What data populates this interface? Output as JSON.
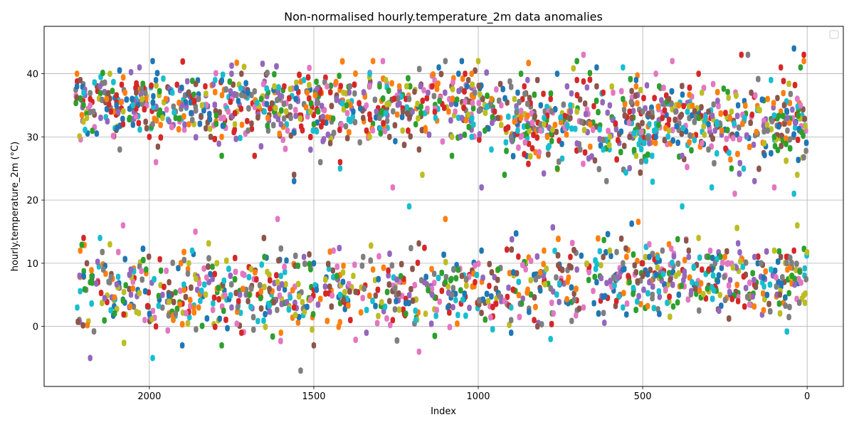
{
  "chart_data": {
    "type": "scatter",
    "title": "Non-normalised hourly.temperature_2m data anomalies",
    "xlabel": "Index",
    "ylabel": "hourly.temperature_2m (°C)",
    "x_inverted": true,
    "xlim": [
      2320,
      -110
    ],
    "ylim": [
      -9.5,
      47.5
    ],
    "x_ticks": [
      2000,
      1500,
      1000,
      500,
      0
    ],
    "x_tick_labels": [
      "2000",
      "1500",
      "1000",
      "500",
      "0"
    ],
    "y_ticks": [
      0,
      10,
      20,
      30,
      40
    ],
    "y_tick_labels": [
      "0",
      "10",
      "20",
      "30",
      "40"
    ],
    "grid": true,
    "legend_placement": "top-right",
    "legend_entries": [],
    "x_extent": [
      0,
      2225
    ],
    "clusters": [
      {
        "cluster": "high",
        "y_range_center": [
          30,
          40
        ],
        "y_extent": [
          19,
          45
        ]
      },
      {
        "cluster": "low",
        "y_range_center": [
          -2,
          13
        ],
        "y_extent": [
          -7,
          17
        ]
      }
    ],
    "palette": [
      "#1f77b4",
      "#ff7f0e",
      "#2ca02c",
      "#d62728",
      "#9467bd",
      "#8c564b",
      "#e377c2",
      "#7f7f7f",
      "#bcbd22",
      "#17becf"
    ],
    "series": [
      {
        "color": "#1f77b4",
        "x": [
          2220,
          2100,
          1990,
          1980,
          1700,
          1555,
          1560,
          1380,
          1120,
          1060,
          1050,
          880,
          810,
          760,
          640,
          520,
          460,
          300,
          210,
          40,
          2200,
          2000,
          1900,
          1500,
          1250,
          990,
          900,
          640,
          560,
          480,
          150
        ],
        "y": [
          38,
          35,
          42,
          39,
          37,
          36,
          23,
          34,
          41,
          40,
          42,
          37,
          35,
          40,
          41,
          39,
          30,
          32,
          35,
          44,
          8,
          2,
          -3,
          10,
          4,
          12,
          -1,
          7,
          9,
          11,
          10
        ]
      },
      {
        "color": "#ff7f0e",
        "x": [
          2220,
          2130,
          1950,
          1880,
          1780,
          1640,
          1520,
          1400,
          1320,
          1240,
          1160,
          1090,
          1020,
          960,
          870,
          790,
          660,
          520,
          390,
          260,
          120,
          10,
          2210,
          2050,
          1850,
          1600,
          1320,
          1100,
          800,
          420,
          250,
          60
        ],
        "y": [
          40,
          36,
          36,
          32,
          30,
          33,
          37,
          35,
          42,
          38,
          31,
          34,
          40,
          36,
          33,
          30,
          32,
          38,
          35,
          31,
          36,
          42,
          12,
          6,
          3,
          -1,
          9,
          17,
          12,
          13,
          11,
          9
        ]
      },
      {
        "color": "#2ca02c",
        "x": [
          2200,
          2060,
          1920,
          1780,
          1660,
          1500,
          1400,
          1300,
          1190,
          1080,
          980,
          920,
          870,
          760,
          700,
          560,
          450,
          330,
          230,
          100,
          20,
          2180,
          2010,
          1780,
          1650,
          1430,
          1220,
          1100,
          940,
          540,
          300
        ],
        "y": [
          35,
          33,
          33,
          27,
          36,
          32,
          35,
          38,
          32,
          27,
          31,
          24,
          40,
          25,
          42,
          36,
          38,
          33,
          25,
          30,
          41,
          7,
          9,
          -3,
          11,
          8,
          2,
          7,
          9,
          7,
          11
        ]
      },
      {
        "color": "#d62728",
        "x": [
          2180,
          2080,
          2000,
          1830,
          1680,
          1590,
          1480,
          1420,
          1340,
          1220,
          1140,
          1040,
          950,
          860,
          780,
          700,
          620,
          540,
          440,
          330,
          200,
          80,
          10,
          2200,
          1980,
          1720,
          1560,
          1260,
          1010,
          830,
          720,
          500,
          320,
          210,
          40
        ],
        "y": [
          36,
          32,
          30,
          38,
          27,
          38,
          37,
          26,
          31,
          36,
          38,
          40,
          34,
          38,
          36,
          39,
          37,
          34,
          33,
          40,
          43,
          41,
          43,
          14,
          0,
          -1,
          3,
          1,
          7,
          1,
          11,
          10,
          9,
          4,
          12
        ]
      },
      {
        "color": "#9467bd",
        "x": [
          2150,
          2030,
          1900,
          1750,
          1600,
          1430,
          1310,
          1200,
          1050,
          990,
          850,
          730,
          600,
          480,
          380,
          280,
          160,
          60,
          2180,
          1960,
          1750,
          1530,
          1340,
          1140,
          930,
          700,
          480,
          360,
          160
        ],
        "y": [
          38,
          41,
          35,
          40,
          32,
          36,
          34,
          34,
          33,
          22,
          39,
          38,
          35,
          29,
          27,
          31,
          23,
          33,
          -5,
          5,
          3,
          11,
          -1,
          5,
          4,
          9,
          7,
          11,
          11
        ]
      },
      {
        "color": "#8c564b",
        "x": [
          2210,
          2040,
          1880,
          1720,
          1560,
          1450,
          1350,
          1270,
          1180,
          1030,
          940,
          820,
          720,
          640,
          540,
          420,
          300,
          170,
          70,
          2190,
          1940,
          1700,
          1500,
          1270,
          1050,
          820,
          620,
          500,
          360,
          80
        ],
        "y": [
          39,
          37,
          37,
          40,
          24,
          29,
          33,
          30,
          28,
          39,
          33,
          39,
          33,
          38,
          30,
          36,
          34,
          37,
          35,
          10,
          7,
          4,
          -3,
          4,
          8,
          0,
          11,
          8,
          12,
          11
        ]
      },
      {
        "color": "#e377c2",
        "x": [
          2180,
          1980,
          1760,
          1580,
          1460,
          1330,
          1290,
          1260,
          1070,
          930,
          810,
          680,
          590,
          460,
          410,
          320,
          220,
          100,
          20,
          2080,
          1860,
          1610,
          1440,
          1180,
          920,
          680,
          480,
          240,
          20
        ],
        "y": [
          35,
          26,
          34,
          31,
          38,
          38,
          42,
          22,
          34,
          35,
          31,
          43,
          37,
          40,
          42,
          29,
          21,
          22,
          35,
          16,
          15,
          17,
          12,
          -4,
          4,
          3,
          13,
          10,
          7
        ]
      },
      {
        "color": "#7f7f7f",
        "x": [
          2170,
          2090,
          1990,
          1850,
          1700,
          1570,
          1480,
          1390,
          1300,
          1210,
          1100,
          1010,
          900,
          810,
          690,
          610,
          500,
          400,
          300,
          180,
          120,
          60,
          2140,
          1920,
          1690,
          1540,
          1350,
          1080,
          900,
          560,
          440,
          280,
          140
        ],
        "y": [
          34,
          28,
          32,
          36,
          31,
          33,
          26,
          38,
          33,
          36,
          42,
          37,
          30,
          32,
          28,
          23,
          34,
          34,
          28,
          43,
          31,
          31,
          9,
          2,
          6,
          -7,
          11,
          5,
          1,
          10,
          12,
          10,
          10
        ]
      },
      {
        "color": "#bcbd22",
        "x": [
          2190,
          2120,
          1960,
          1840,
          1740,
          1620,
          1510,
          1410,
          1330,
          1230,
          1170,
          1080,
          1000,
          890,
          800,
          700,
          600,
          520,
          420,
          320,
          230,
          130,
          30,
          2120,
          1880,
          1610,
          1380,
          1160,
          970,
          600,
          330,
          100,
          30
        ],
        "y": [
          33,
          40,
          33,
          35,
          32,
          38,
          34,
          37,
          30,
          31,
          24,
          30,
          42,
          36,
          32,
          34,
          30,
          27,
          31,
          37,
          34,
          29,
          24,
          13,
          10,
          7,
          8,
          2,
          4,
          12,
          14,
          12,
          16
        ]
      },
      {
        "color": "#17becf",
        "x": [
          2200,
          2050,
          1930,
          1800,
          1650,
          1530,
          1420,
          1330,
          1210,
          1130,
          1020,
          960,
          880,
          800,
          720,
          620,
          560,
          480,
          380,
          290,
          190,
          110,
          40,
          2150,
          1990,
          1870,
          1600,
          1420,
          1190,
          900,
          780,
          560,
          350,
          110
        ],
        "y": [
          37,
          35,
          37,
          39,
          34,
          39,
          25,
          40,
          19,
          33,
          30,
          28,
          31,
          33,
          35,
          28,
          41,
          32,
          19,
          22,
          33,
          39,
          21,
          14,
          -5,
          12,
          8,
          5,
          1,
          3,
          -2,
          3,
          7,
          9
        ]
      }
    ]
  }
}
